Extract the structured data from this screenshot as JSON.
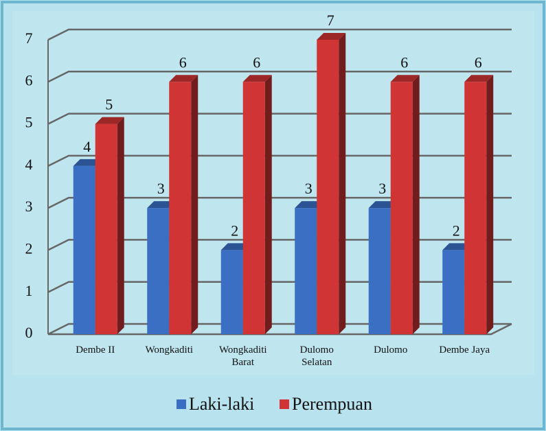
{
  "chart_data": {
    "type": "bar3d",
    "categories": [
      "Dembe II",
      "Wongkaditi",
      "Wongkaditi Barat",
      "Dulomo Selatan",
      "Dulomo",
      "Dembe Jaya"
    ],
    "series": [
      {
        "name": "Laki-laki",
        "color": "#3a6fc4",
        "values": [
          4,
          3,
          2,
          3,
          3,
          2
        ]
      },
      {
        "name": "Perempuan",
        "color": "#d03434",
        "values": [
          5,
          6,
          6,
          7,
          6,
          6
        ]
      }
    ],
    "ylim": [
      0,
      7
    ],
    "yticks": [
      0,
      1,
      2,
      3,
      4,
      5,
      6,
      7
    ],
    "grid": true,
    "legend": "bottom"
  }
}
